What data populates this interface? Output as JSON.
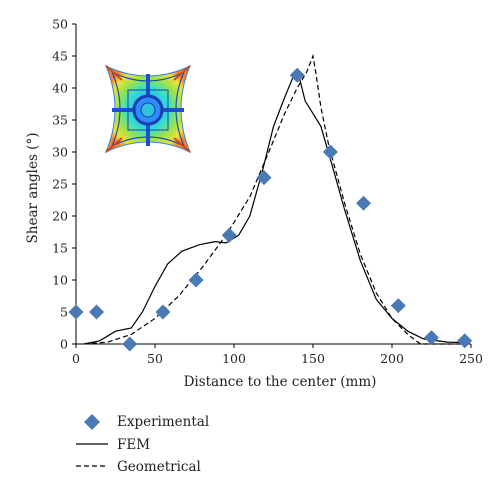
{
  "chart_data": {
    "type": "scatter",
    "xlabel": "Distance to the center (mm)",
    "ylabel": "Shear angles (°)",
    "xlim": [
      0,
      250
    ],
    "ylim": [
      0,
      50
    ],
    "xticks": [
      0,
      50,
      100,
      150,
      200,
      250
    ],
    "yticks": [
      0,
      5,
      10,
      15,
      20,
      25,
      30,
      35,
      40,
      45,
      50
    ],
    "grid": false,
    "legend_position": "bottom-left",
    "inset": "FEM deformation contour plot of the square fabric",
    "series": [
      {
        "name": "Experimental",
        "kind": "marker-diamond",
        "color": "#4a7ab5",
        "points": [
          [
            0,
            5
          ],
          [
            13,
            5
          ],
          [
            34,
            0
          ],
          [
            55,
            5
          ],
          [
            76,
            10
          ],
          [
            97,
            17
          ],
          [
            119,
            26
          ],
          [
            140,
            42
          ],
          [
            161,
            30
          ],
          [
            182,
            22
          ],
          [
            204,
            6
          ],
          [
            225,
            1
          ],
          [
            246,
            0.5
          ]
        ]
      },
      {
        "name": "FEM",
        "kind": "solid-line",
        "color": "#000000",
        "points": [
          [
            5,
            0
          ],
          [
            15,
            0.5
          ],
          [
            25,
            2
          ],
          [
            35,
            2.5
          ],
          [
            42,
            5
          ],
          [
            50,
            9
          ],
          [
            58,
            12.5
          ],
          [
            67,
            14.5
          ],
          [
            78,
            15.5
          ],
          [
            88,
            16
          ],
          [
            95,
            15.8
          ],
          [
            103,
            17
          ],
          [
            110,
            20
          ],
          [
            118,
            27
          ],
          [
            125,
            34
          ],
          [
            132,
            38.5
          ],
          [
            137,
            41.5
          ],
          [
            141,
            42
          ],
          [
            145,
            38
          ],
          [
            150,
            36
          ],
          [
            155,
            34
          ],
          [
            162,
            28
          ],
          [
            170,
            21
          ],
          [
            180,
            13
          ],
          [
            190,
            7
          ],
          [
            200,
            4
          ],
          [
            210,
            2
          ],
          [
            220,
            0.8
          ],
          [
            235,
            0.3
          ],
          [
            248,
            0.2
          ]
        ]
      },
      {
        "name": "Geometrical",
        "kind": "dashed-line",
        "color": "#000000",
        "points": [
          [
            5,
            0
          ],
          [
            20,
            0.3
          ],
          [
            35,
            1.5
          ],
          [
            50,
            4
          ],
          [
            65,
            7.5
          ],
          [
            80,
            12
          ],
          [
            95,
            17
          ],
          [
            110,
            23
          ],
          [
            122,
            30
          ],
          [
            132,
            36
          ],
          [
            140,
            40
          ],
          [
            146,
            42.5
          ],
          [
            150,
            45
          ],
          [
            152,
            42
          ],
          [
            155,
            37
          ],
          [
            160,
            31
          ],
          [
            170,
            22
          ],
          [
            180,
            14
          ],
          [
            190,
            8
          ],
          [
            200,
            4
          ],
          [
            210,
            1.5
          ],
          [
            218,
            0
          ],
          [
            235,
            0
          ],
          [
            248,
            0
          ]
        ]
      }
    ]
  }
}
